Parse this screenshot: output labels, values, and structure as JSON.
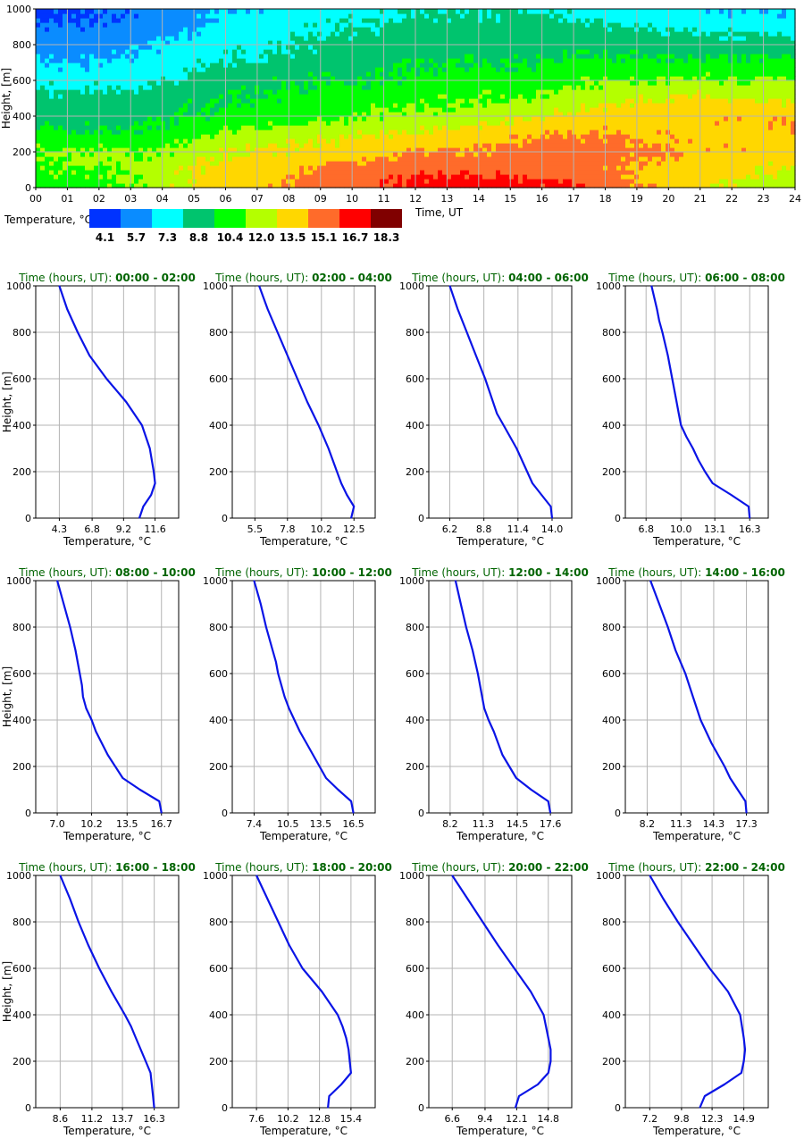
{
  "colors": {
    "profile_line": "#0a14e6",
    "panel_title": "#006400",
    "grid": "#b4b4b4",
    "axis": "#000000"
  },
  "heatmap": {
    "ylabel": "Height, [m]",
    "xlabel": "Time, UT",
    "y_ticks": [
      "0",
      "200",
      "400",
      "600",
      "800",
      "1000"
    ],
    "x_ticks": [
      "00",
      "01",
      "02",
      "03",
      "04",
      "05",
      "06",
      "07",
      "08",
      "09",
      "10",
      "11",
      "12",
      "13",
      "14",
      "15",
      "16",
      "17",
      "18",
      "19",
      "20",
      "21",
      "22",
      "23",
      "24"
    ],
    "colorbar_label": "Temperature, °C",
    "colorbar_values": [
      "4.1",
      "5.7",
      "7.3",
      "8.8",
      "10.4",
      "12.0",
      "13.5",
      "15.1",
      "16.7",
      "18.3"
    ],
    "colorbar_colors": [
      "#0033ff",
      "#0a8cff",
      "#00ffff",
      "#00c46e",
      "#00ff00",
      "#b4ff00",
      "#ffd700",
      "#ff6b2a",
      "#ff0000",
      "#800000"
    ]
  },
  "profile_axis": {
    "ylabel": "Height, [m]",
    "xlabel": "Temperature, °C",
    "y_ticks": [
      "0",
      "200",
      "400",
      "600",
      "800",
      "1000"
    ]
  },
  "chart_data": [
    {
      "type": "heatmap",
      "x_range": [
        0,
        24
      ],
      "y_range": [
        0,
        1000
      ],
      "xlabel": "Time, UT",
      "ylabel": "Height, [m]",
      "colorbar_label": "Temperature, °C",
      "colorbar_values": [
        4.1,
        5.7,
        7.3,
        8.8,
        10.4,
        12.0,
        13.5,
        15.1,
        16.7,
        18.3
      ],
      "time_hours": [
        0,
        1.5,
        3,
        4.5,
        6,
        8,
        10,
        12,
        14,
        16,
        17,
        19,
        21,
        22.5,
        24
      ],
      "heights_m": [
        0,
        100,
        200,
        300,
        400,
        500,
        600,
        700,
        800,
        900,
        1000
      ],
      "temperature_c": [
        [
          10.5,
          10.5,
          11.0,
          12.5,
          13.0,
          14.5,
          15.5,
          16.5,
          17.0,
          16.5,
          16.0,
          14.5,
          13.0,
          12.0,
          12.0
        ],
        [
          11.0,
          11.0,
          11.5,
          12.5,
          13.5,
          14.0,
          15.0,
          15.5,
          15.5,
          15.0,
          15.0,
          14.0,
          13.5,
          13.0,
          12.5
        ],
        [
          11.5,
          11.5,
          11.0,
          11.5,
          12.5,
          13.0,
          13.5,
          14.5,
          14.5,
          15.0,
          15.2,
          14.8,
          14.0,
          14.0,
          13.5
        ],
        [
          10.0,
          10.0,
          10.0,
          10.5,
          11.5,
          12.0,
          12.5,
          13.0,
          13.5,
          14.0,
          14.5,
          14.0,
          13.8,
          13.7,
          14.0
        ],
        [
          9.0,
          9.0,
          9.0,
          9.5,
          10.0,
          10.5,
          11.0,
          11.5,
          12.0,
          12.5,
          13.0,
          13.5,
          14.0,
          14.0,
          14.0
        ],
        [
          8.5,
          8.5,
          8.5,
          9.0,
          9.5,
          10.0,
          10.5,
          11.0,
          11.0,
          11.5,
          12.0,
          12.5,
          13.0,
          12.5,
          12.5
        ],
        [
          7.5,
          7.5,
          7.5,
          8.0,
          9.0,
          9.5,
          9.5,
          10.0,
          10.5,
          10.5,
          11.0,
          11.0,
          11.5,
          11.0,
          11.5
        ],
        [
          6.5,
          6.5,
          7.0,
          7.5,
          8.0,
          8.5,
          9.0,
          9.5,
          9.5,
          9.5,
          10.0,
          10.0,
          10.0,
          10.0,
          10.0
        ],
        [
          5.5,
          5.5,
          6.0,
          7.0,
          7.5,
          8.0,
          8.5,
          9.0,
          9.0,
          9.0,
          9.0,
          8.8,
          8.5,
          8.5,
          8.8
        ],
        [
          5.0,
          5.0,
          5.5,
          6.0,
          7.0,
          7.5,
          8.0,
          8.5,
          8.5,
          8.5,
          8.5,
          8.0,
          7.5,
          7.5,
          7.5
        ],
        [
          4.5,
          4.5,
          5.0,
          5.5,
          6.5,
          7.0,
          7.5,
          8.0,
          8.0,
          8.0,
          7.5,
          7.0,
          6.5,
          6.5,
          6.5
        ]
      ]
    },
    {
      "type": "line",
      "title_label": "Time (hours, UT):",
      "title_range": "00:00 - 02:00",
      "xlabel": "Temperature, °C",
      "ylabel": "Height, [m]",
      "ylim": [
        0,
        1000
      ],
      "xlim": [
        2.5,
        13.4
      ],
      "x_ticks": [
        4.3,
        6.8,
        9.2,
        11.6
      ],
      "x_tick_labels": [
        "4.3",
        "6.8",
        "9.2",
        "11.6"
      ],
      "y": [
        0,
        50,
        100,
        150,
        200,
        300,
        400,
        500,
        600,
        700,
        800,
        900,
        1000
      ],
      "x": [
        10.4,
        10.7,
        11.3,
        11.6,
        11.5,
        11.2,
        10.6,
        9.4,
        7.9,
        6.6,
        5.7,
        4.9,
        4.3
      ]
    },
    {
      "type": "line",
      "title_label": "Time (hours, UT):",
      "title_range": "02:00 - 04:00",
      "xlabel": "Temperature, °C",
      "ylabel": "Height, [m]",
      "ylim": [
        0,
        1000
      ],
      "xlim": [
        3.9,
        14.0
      ],
      "x_ticks": [
        5.5,
        7.8,
        10.2,
        12.5
      ],
      "x_tick_labels": [
        "5.5",
        "7.8",
        "10.2",
        "12.5"
      ],
      "y": [
        0,
        50,
        100,
        150,
        200,
        300,
        400,
        500,
        600,
        700,
        800,
        900,
        1000
      ],
      "x": [
        12.3,
        12.5,
        12.0,
        11.6,
        11.3,
        10.7,
        10.0,
        9.2,
        8.5,
        7.8,
        7.1,
        6.4,
        5.8
      ]
    },
    {
      "type": "line",
      "title_label": "Time (hours, UT):",
      "title_range": "04:00 - 06:00",
      "xlabel": "Temperature, °C",
      "ylabel": "Height, [m]",
      "ylim": [
        0,
        1000
      ],
      "xlim": [
        4.6,
        15.5
      ],
      "x_ticks": [
        6.2,
        8.8,
        11.4,
        14.0
      ],
      "x_tick_labels": [
        "6.2",
        "8.8",
        "11.4",
        "14.0"
      ],
      "y": [
        0,
        50,
        100,
        150,
        200,
        300,
        400,
        450,
        500,
        600,
        700,
        800,
        900,
        1000
      ],
      "x": [
        14.0,
        13.9,
        13.2,
        12.5,
        12.1,
        11.3,
        10.3,
        9.8,
        9.5,
        8.9,
        8.2,
        7.5,
        6.8,
        6.2
      ]
    },
    {
      "type": "line",
      "title_label": "Time (hours, UT):",
      "title_range": "06:00 - 08:00",
      "xlabel": "Temperature, °C",
      "ylabel": "Height, [m]",
      "ylim": [
        0,
        1000
      ],
      "xlim": [
        4.9,
        18.0
      ],
      "x_ticks": [
        6.8,
        10.0,
        13.1,
        16.3
      ],
      "x_tick_labels": [
        "6.8",
        "10.0",
        "13.1",
        "16.3"
      ],
      "y": [
        0,
        50,
        100,
        150,
        200,
        250,
        300,
        350,
        400,
        450,
        500,
        600,
        700,
        800,
        850,
        900,
        1000
      ],
      "x": [
        16.3,
        16.2,
        14.6,
        12.9,
        12.2,
        11.6,
        11.1,
        10.5,
        10.0,
        9.8,
        9.6,
        9.2,
        8.8,
        8.3,
        8.0,
        7.8,
        7.3
      ]
    },
    {
      "type": "line",
      "title_label": "Time (hours, UT):",
      "title_range": "08:00 - 10:00",
      "xlabel": "Temperature, °C",
      "ylabel": "Height, [m]",
      "ylim": [
        0,
        1000
      ],
      "xlim": [
        5.0,
        18.3
      ],
      "x_ticks": [
        7.0,
        10.2,
        13.5,
        16.7
      ],
      "x_tick_labels": [
        "7.0",
        "10.2",
        "13.5",
        "16.7"
      ],
      "y": [
        0,
        50,
        100,
        150,
        250,
        350,
        400,
        450,
        500,
        550,
        600,
        700,
        800,
        900,
        1000
      ],
      "x": [
        16.7,
        16.5,
        14.7,
        13.1,
        11.7,
        10.6,
        10.2,
        9.7,
        9.4,
        9.3,
        9.1,
        8.7,
        8.2,
        7.6,
        7.0
      ]
    },
    {
      "type": "line",
      "title_label": "Time (hours, UT):",
      "title_range": "10:00 - 12:00",
      "xlabel": "Temperature, °C",
      "ylabel": "Height, [m]",
      "ylim": [
        0,
        1000
      ],
      "xlim": [
        5.4,
        18.5
      ],
      "x_ticks": [
        7.4,
        10.5,
        13.5,
        16.5
      ],
      "x_tick_labels": [
        "7.4",
        "10.5",
        "13.5",
        "16.5"
      ],
      "y": [
        0,
        50,
        100,
        150,
        200,
        250,
        300,
        350,
        400,
        450,
        500,
        600,
        650,
        700,
        800,
        900,
        1000
      ],
      "x": [
        16.5,
        16.3,
        15.1,
        14.0,
        13.4,
        12.8,
        12.2,
        11.6,
        11.1,
        10.6,
        10.2,
        9.6,
        9.4,
        9.1,
        8.5,
        8.0,
        7.4
      ]
    },
    {
      "type": "line",
      "title_label": "Time (hours, UT):",
      "title_range": "12:00 - 14:00",
      "xlabel": "Temperature, °C",
      "ylabel": "Height, [m]",
      "ylim": [
        0,
        1000
      ],
      "xlim": [
        6.2,
        19.6
      ],
      "x_ticks": [
        8.2,
        11.3,
        14.5,
        17.6
      ],
      "x_tick_labels": [
        "8.2",
        "11.3",
        "14.5",
        "17.6"
      ],
      "y": [
        0,
        50,
        100,
        150,
        250,
        350,
        400,
        450,
        500,
        550,
        600,
        700,
        800,
        900,
        1000
      ],
      "x": [
        17.6,
        17.4,
        15.8,
        14.4,
        13.1,
        12.3,
        11.8,
        11.4,
        11.2,
        11.0,
        10.8,
        10.3,
        9.7,
        9.2,
        8.7
      ]
    },
    {
      "type": "line",
      "title_label": "Time (hours, UT):",
      "title_range": "14:00 - 16:00",
      "xlabel": "Temperature, °C",
      "ylabel": "Height, [m]",
      "ylim": [
        0,
        1000
      ],
      "xlim": [
        6.2,
        19.3
      ],
      "x_ticks": [
        8.2,
        11.3,
        14.3,
        17.3
      ],
      "x_tick_labels": [
        "8.2",
        "11.3",
        "14.3",
        "17.3"
      ],
      "y": [
        0,
        50,
        100,
        150,
        200,
        250,
        300,
        400,
        500,
        600,
        700,
        800,
        900,
        1000
      ],
      "x": [
        17.3,
        17.2,
        16.5,
        15.8,
        15.3,
        14.7,
        14.1,
        13.1,
        12.4,
        11.7,
        10.8,
        10.1,
        9.3,
        8.5
      ]
    },
    {
      "type": "line",
      "title_label": "Time (hours, UT):",
      "title_range": "16:00 - 18:00",
      "xlabel": "Temperature, °C",
      "ylabel": "Height, [m]",
      "ylim": [
        0,
        1000
      ],
      "xlim": [
        6.6,
        18.3
      ],
      "x_ticks": [
        8.6,
        11.2,
        13.7,
        16.3
      ],
      "x_tick_labels": [
        "8.6",
        "11.2",
        "13.7",
        "16.3"
      ],
      "y": [
        0,
        50,
        100,
        150,
        200,
        250,
        300,
        350,
        400,
        500,
        600,
        700,
        800,
        900,
        1000
      ],
      "x": [
        16.3,
        16.2,
        16.1,
        16.0,
        15.6,
        15.2,
        14.8,
        14.4,
        13.9,
        12.8,
        11.8,
        10.9,
        10.1,
        9.4,
        8.6
      ]
    },
    {
      "type": "line",
      "title_label": "Time (hours, UT):",
      "title_range": "18:00 - 20:00",
      "xlabel": "Temperature, °C",
      "ylabel": "Height, [m]",
      "ylim": [
        0,
        1000
      ],
      "xlim": [
        5.6,
        17.4
      ],
      "x_ticks": [
        7.6,
        10.2,
        12.8,
        15.4
      ],
      "x_tick_labels": [
        "7.6",
        "10.2",
        "12.8",
        "15.4"
      ],
      "y": [
        0,
        50,
        100,
        150,
        200,
        250,
        300,
        350,
        400,
        500,
        600,
        700,
        800,
        900,
        1000
      ],
      "x": [
        13.5,
        13.6,
        14.6,
        15.4,
        15.3,
        15.2,
        15.0,
        14.7,
        14.3,
        13.0,
        11.4,
        10.3,
        9.4,
        8.5,
        7.6
      ]
    },
    {
      "type": "line",
      "title_label": "Time (hours, UT):",
      "title_range": "20:00 - 22:00",
      "xlabel": "Temperature, °C",
      "ylabel": "Height, [m]",
      "ylim": [
        0,
        1000
      ],
      "xlim": [
        4.6,
        16.8
      ],
      "x_ticks": [
        6.6,
        9.4,
        12.1,
        14.8
      ],
      "x_tick_labels": [
        "6.6",
        "9.4",
        "12.1",
        "14.8"
      ],
      "y": [
        0,
        50,
        100,
        150,
        200,
        250,
        300,
        400,
        500,
        600,
        700,
        800,
        900,
        1000
      ],
      "x": [
        12.0,
        12.3,
        13.9,
        14.8,
        15.0,
        15.0,
        14.8,
        14.4,
        13.3,
        11.9,
        10.5,
        9.2,
        7.9,
        6.6
      ]
    },
    {
      "type": "line",
      "title_label": "Time (hours, UT):",
      "title_range": "22:00 - 24:00",
      "xlabel": "Temperature, °C",
      "ylabel": "Height, [m]",
      "ylim": [
        0,
        1000
      ],
      "xlim": [
        5.2,
        16.9
      ],
      "x_ticks": [
        7.2,
        9.8,
        12.3,
        14.9
      ],
      "x_tick_labels": [
        "7.2",
        "9.8",
        "12.3",
        "14.9"
      ],
      "y": [
        0,
        50,
        100,
        150,
        200,
        250,
        300,
        400,
        500,
        600,
        700,
        800,
        900,
        1000
      ],
      "x": [
        11.3,
        11.7,
        13.3,
        14.7,
        14.9,
        15.0,
        14.9,
        14.6,
        13.6,
        12.1,
        10.8,
        9.5,
        8.3,
        7.2
      ]
    }
  ]
}
